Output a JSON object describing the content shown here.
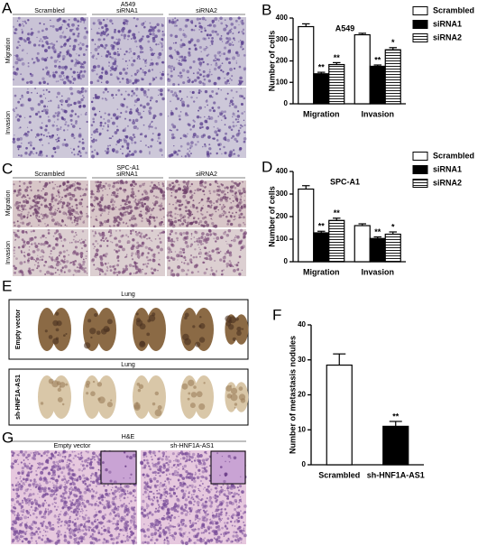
{
  "image_panels": [
    {
      "panel": "A",
      "title": "A549",
      "columns": [
        "Scrambled",
        "siRNA1",
        "siRNA2"
      ],
      "rows": [
        "Migration",
        "Invasion"
      ]
    },
    {
      "panel": "C",
      "title": "SPC-A1",
      "columns": [
        "Scrambled",
        "siRNA1",
        "siRNA2"
      ],
      "rows": [
        "Migration",
        "Invasion"
      ]
    },
    {
      "panel": "E",
      "groups": [
        {
          "title": "Lung",
          "row": "Empty vector"
        },
        {
          "title": "Lung",
          "row": "sh-HNF1A-AS1"
        }
      ]
    },
    {
      "panel": "G",
      "title": "H&E",
      "columns": [
        "Empty vector",
        "sh-HNF1A-AS1"
      ]
    }
  ],
  "chart_data": [
    {
      "panel": "B",
      "type": "bar",
      "title": "A549",
      "y_label": "Number of cells",
      "categories": [
        "Migration",
        "Invasion"
      ],
      "series": [
        {
          "name": "Scrambled",
          "color": "#ffffff",
          "values": [
            360,
            322
          ],
          "errors": [
            13,
            7
          ]
        },
        {
          "name": "siRNA1",
          "color": "#000000",
          "values": [
            140,
            175
          ],
          "errors": [
            7,
            6
          ],
          "labels": [
            "**",
            "**"
          ]
        },
        {
          "name": "siRNA2",
          "color": "#ffffff",
          "hatch": "horizontal",
          "values": [
            183,
            252
          ],
          "errors": [
            9,
            10
          ],
          "labels": [
            "**",
            "*"
          ]
        }
      ],
      "ylim": [
        0,
        400
      ],
      "yticks": [
        0,
        100,
        200,
        300,
        400
      ],
      "legend": "right"
    },
    {
      "panel": "D",
      "type": "bar",
      "title": "SPC-A1",
      "y_label": "Number of cells",
      "categories": [
        "Migration",
        "Invasion"
      ],
      "series": [
        {
          "name": "Scrambled",
          "color": "#ffffff",
          "values": [
            322,
            160
          ],
          "errors": [
            15,
            8
          ]
        },
        {
          "name": "siRNA1",
          "color": "#000000",
          "values": [
            128,
            103
          ],
          "errors": [
            7,
            7
          ],
          "labels": [
            "**",
            "**"
          ]
        },
        {
          "name": "siRNA2",
          "color": "#ffffff",
          "hatch": "horizontal",
          "values": [
            183,
            122
          ],
          "errors": [
            10,
            10
          ],
          "labels": [
            "**",
            "*"
          ]
        }
      ],
      "ylim": [
        0,
        400
      ],
      "yticks": [
        0,
        100,
        200,
        300,
        400
      ],
      "legend": "right"
    },
    {
      "panel": "F",
      "type": "bar",
      "y_label": "Number of metastasis nodules",
      "categories": [
        "Scrambled",
        "sh-HNF1A-AS1"
      ],
      "values": [
        28.5,
        11
      ],
      "errors": [
        3.2,
        1.4
      ],
      "colors": [
        "#ffffff",
        "#000000"
      ],
      "labels": [
        null,
        "**"
      ],
      "ylim": [
        0,
        40
      ],
      "yticks": [
        0,
        10,
        20,
        30,
        40
      ]
    }
  ]
}
